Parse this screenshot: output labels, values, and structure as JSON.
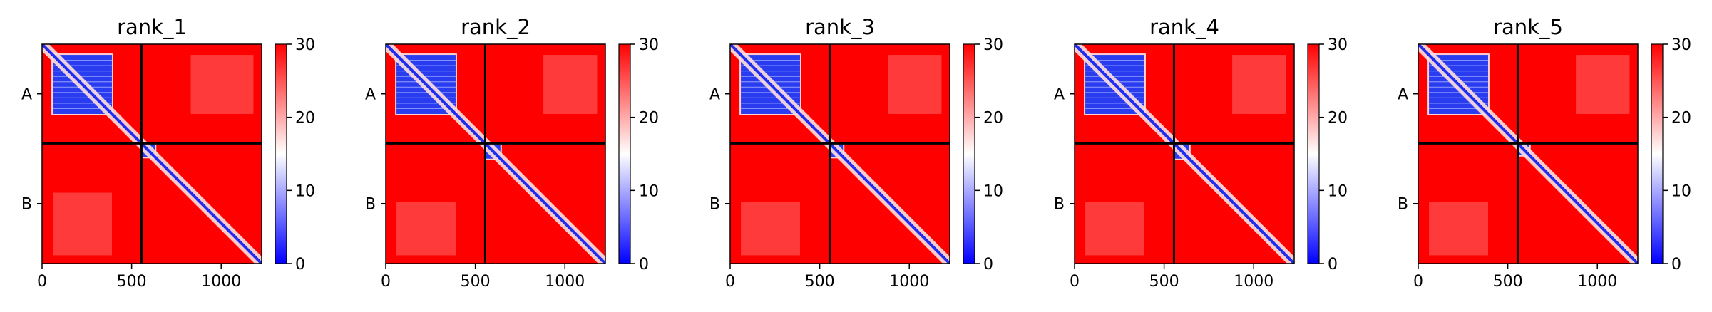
{
  "chart_data": [
    {
      "type": "heatmap",
      "title": "rank_1",
      "x_ticks": [
        0,
        500,
        1000
      ],
      "x_range": [
        0,
        1226
      ],
      "y_range": [
        1226,
        0
      ],
      "chain_labels": [
        "A",
        "B"
      ],
      "chain_boundary": 555,
      "colorbar": {
        "range": [
          0,
          30
        ],
        "ticks": [
          0,
          10,
          20,
          30
        ],
        "colors": [
          "#0000ff",
          "#ffffff",
          "#ff0000"
        ]
      },
      "low_blocks": [
        {
          "rows": [
            60,
            390
          ],
          "cols": [
            60,
            390
          ]
        },
        {
          "rows": [
            560,
            630
          ],
          "cols": [
            560,
            630
          ]
        }
      ],
      "light_regions": [
        {
          "rows": [
            60,
            390
          ],
          "cols": [
            830,
            1180
          ]
        },
        {
          "rows": [
            830,
            1180
          ],
          "cols": [
            60,
            390
          ]
        }
      ]
    },
    {
      "type": "heatmap",
      "title": "rank_2",
      "x_ticks": [
        0,
        500,
        1000
      ],
      "x_range": [
        0,
        1226
      ],
      "y_range": [
        1226,
        0
      ],
      "chain_labels": [
        "A",
        "B"
      ],
      "chain_boundary": 555,
      "colorbar": {
        "range": [
          0,
          30
        ],
        "ticks": [
          0,
          10,
          20,
          30
        ],
        "colors": [
          "#0000ff",
          "#ffffff",
          "#ff0000"
        ]
      },
      "low_blocks": [
        {
          "rows": [
            60,
            390
          ],
          "cols": [
            60,
            390
          ]
        },
        {
          "rows": [
            560,
            640
          ],
          "cols": [
            560,
            640
          ]
        }
      ],
      "light_regions": [
        {
          "rows": [
            60,
            390
          ],
          "cols": [
            880,
            1180
          ]
        },
        {
          "rows": [
            880,
            1180
          ],
          "cols": [
            60,
            390
          ]
        }
      ]
    },
    {
      "type": "heatmap",
      "title": "rank_3",
      "x_ticks": [
        0,
        500,
        1000
      ],
      "x_range": [
        0,
        1226
      ],
      "y_range": [
        1226,
        0
      ],
      "chain_labels": [
        "A",
        "B"
      ],
      "chain_boundary": 555,
      "colorbar": {
        "range": [
          0,
          30
        ],
        "ticks": [
          0,
          10,
          20,
          30
        ],
        "colors": [
          "#0000ff",
          "#ffffff",
          "#ff0000"
        ]
      },
      "low_blocks": [
        {
          "rows": [
            60,
            390
          ],
          "cols": [
            60,
            390
          ]
        },
        {
          "rows": [
            560,
            630
          ],
          "cols": [
            560,
            630
          ]
        }
      ],
      "light_regions": [
        {
          "rows": [
            60,
            390
          ],
          "cols": [
            880,
            1180
          ]
        },
        {
          "rows": [
            880,
            1180
          ],
          "cols": [
            60,
            390
          ]
        }
      ]
    },
    {
      "type": "heatmap",
      "title": "rank_4",
      "x_ticks": [
        0,
        500,
        1000
      ],
      "x_range": [
        0,
        1226
      ],
      "y_range": [
        1226,
        0
      ],
      "chain_labels": [
        "A",
        "B"
      ],
      "chain_boundary": 555,
      "colorbar": {
        "range": [
          0,
          30
        ],
        "ticks": [
          0,
          10,
          20,
          30
        ],
        "colors": [
          "#0000ff",
          "#ffffff",
          "#ff0000"
        ]
      },
      "low_blocks": [
        {
          "rows": [
            60,
            390
          ],
          "cols": [
            60,
            390
          ]
        },
        {
          "rows": [
            560,
            640
          ],
          "cols": [
            560,
            640
          ]
        }
      ],
      "light_regions": [
        {
          "rows": [
            60,
            390
          ],
          "cols": [
            880,
            1180
          ]
        },
        {
          "rows": [
            880,
            1180
          ],
          "cols": [
            60,
            390
          ]
        }
      ]
    },
    {
      "type": "heatmap",
      "title": "rank_5",
      "x_ticks": [
        0,
        500,
        1000
      ],
      "x_range": [
        0,
        1226
      ],
      "y_range": [
        1226,
        0
      ],
      "chain_labels": [
        "A",
        "B"
      ],
      "chain_boundary": 555,
      "colorbar": {
        "range": [
          0,
          30
        ],
        "ticks": [
          0,
          10,
          20,
          30
        ],
        "colors": [
          "#0000ff",
          "#ffffff",
          "#ff0000"
        ]
      },
      "low_blocks": [
        {
          "rows": [
            60,
            390
          ],
          "cols": [
            60,
            390
          ]
        },
        {
          "rows": [
            560,
            620
          ],
          "cols": [
            560,
            620
          ]
        }
      ],
      "light_regions": [
        {
          "rows": [
            60,
            390
          ],
          "cols": [
            880,
            1180
          ]
        },
        {
          "rows": [
            880,
            1180
          ],
          "cols": [
            60,
            390
          ]
        }
      ]
    }
  ]
}
